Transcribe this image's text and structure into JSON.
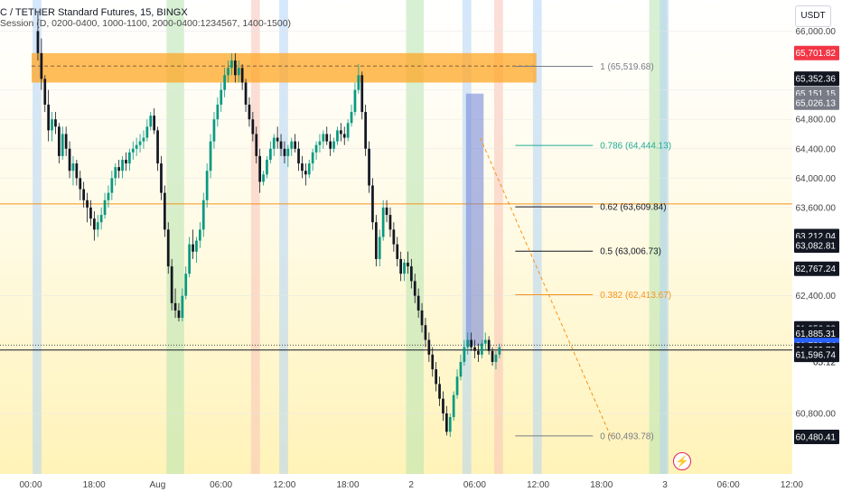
{
  "header": {
    "title": "C / TETHER Standard Futures, 15, BINGX",
    "session": "Session (D, 0200-0400, 1000-1100, 2000-0400:1234567, 1400-1500)"
  },
  "currency_button": "USDT",
  "countdown": "05:12",
  "chart_data": {
    "type": "candlestick",
    "title": "C / TETHER Standard Futures, 15, BINGX",
    "ylim": [
      60100,
      66300
    ],
    "y_ticks": [
      {
        "value": 66000,
        "label": "66,000.00"
      },
      {
        "value": 65200,
        "label": "65,200.00"
      },
      {
        "value": 64800,
        "label": "64,800.00"
      },
      {
        "value": 64400,
        "label": "64,400.00"
      },
      {
        "value": 64000,
        "label": "64,000.00"
      },
      {
        "value": 63600,
        "label": "63,600.00"
      },
      {
        "value": 62400,
        "label": "62,400.00"
      },
      {
        "value": 60800,
        "label": "60,800.00"
      }
    ],
    "x_ticks": [
      {
        "idx": 0,
        "label": "00:00"
      },
      {
        "idx": 18,
        "label": "18:00"
      },
      {
        "idx": 36,
        "label": "Aug"
      },
      {
        "idx": 54,
        "label": "06:00"
      },
      {
        "idx": 72,
        "label": "12:00"
      },
      {
        "idx": 90,
        "label": "18:00"
      },
      {
        "idx": 108,
        "label": "2"
      },
      {
        "idx": 126,
        "label": "06:00"
      },
      {
        "idx": 144,
        "label": "12:00"
      },
      {
        "idx": 162,
        "label": "18:00"
      },
      {
        "idx": 180,
        "label": "3"
      },
      {
        "idx": 198,
        "label": "06:00"
      },
      {
        "idx": 216,
        "label": "12:00"
      }
    ],
    "price_tags": [
      {
        "value": 65701.82,
        "label": "65,701.82",
        "bg": "#f23645",
        "fg": "#ffffff"
      },
      {
        "value": 65352.36,
        "label": "65,352.36",
        "bg": "#131722",
        "fg": "#ffffff"
      },
      {
        "value": 65151.15,
        "label": "65,151.15",
        "bg": "#787b86",
        "fg": "#ffffff"
      },
      {
        "value": 65026.13,
        "label": "65,026.13",
        "bg": "#787b86",
        "fg": "#ffffff"
      },
      {
        "value": 63212.04,
        "label": "63,212.04",
        "bg": "#131722",
        "fg": "#ffffff"
      },
      {
        "value": 63082.81,
        "label": "63,082.81",
        "bg": "#131722",
        "fg": "#ffffff"
      },
      {
        "value": 62767.24,
        "label": "62,767.24",
        "bg": "#131722",
        "fg": "#ffffff"
      },
      {
        "value": 61956.38,
        "label": "61,956.38",
        "bg": "#131722",
        "fg": "#ffffff"
      },
      {
        "value": 61885.31,
        "label": "61,885.31",
        "bg": "#131722",
        "fg": "#ffffff"
      },
      {
        "value": 61729.64,
        "label": "61,729.64",
        "bg": "#2962ff",
        "fg": "#ffffff"
      },
      {
        "value": 61662.72,
        "label": "61,662.72",
        "bg": "#131722",
        "fg": "#ffffff"
      },
      {
        "value": 61596.74,
        "label": "61,596.74",
        "bg": "#131722",
        "fg": "#ffffff"
      },
      {
        "value": 60480.41,
        "label": "60,480.41",
        "bg": "#131722",
        "fg": "#ffffff"
      }
    ],
    "fib_levels": [
      {
        "ratio": "1",
        "value": 65519.68,
        "label": "1 (65,519.68)",
        "color": "#787b86"
      },
      {
        "ratio": "0.786",
        "value": 64444.13,
        "label": "0.786 (64,444.13)",
        "color": "#22ab94"
      },
      {
        "ratio": "0.62",
        "value": 63609.84,
        "label": "0.62 (63,609.84)",
        "color": "#131722"
      },
      {
        "ratio": "0.5",
        "value": 63006.73,
        "label": "0.5 (63,006.73)",
        "color": "#131722"
      },
      {
        "ratio": "0.382",
        "value": 62413.67,
        "label": "0.382 (62,413.67)",
        "color": "#f7931a"
      },
      {
        "ratio": "0",
        "value": 60493.78,
        "label": "0 (60,493.78)",
        "color": "#787b86"
      }
    ],
    "horizontal_lines": [
      {
        "value": 63650,
        "color": "#f7931a"
      },
      {
        "value": 61662.72,
        "color": "#131722"
      }
    ],
    "zone": {
      "from_idx": 0,
      "to_idx": 142,
      "high": 65700,
      "low": 65300,
      "color": "#ffa726"
    },
    "highlight": {
      "from_idx": 122,
      "to_idx": 127,
      "high": 65150,
      "low": 61720,
      "color": "#6b7fd7"
    },
    "trendline": {
      "from_idx": 126,
      "from_value": 64550,
      "to_idx": 163,
      "to_value": 60493.78
    },
    "session_bands": [
      {
        "idx": -1,
        "width": 2.5,
        "color": "#b3d4f5"
      },
      {
        "idx": 37,
        "width": 5,
        "color": "#b7e3b0"
      },
      {
        "idx": 61,
        "width": 2.5,
        "color": "#f7c2b8"
      },
      {
        "idx": 69,
        "width": 2.5,
        "color": "#b3d4f5"
      },
      {
        "idx": 105,
        "width": 5,
        "color": "#b7e3b0"
      },
      {
        "idx": 121,
        "width": 2.5,
        "color": "#b3d4f5"
      },
      {
        "idx": 130,
        "width": 2.5,
        "color": "#f7c2b8"
      },
      {
        "idx": 141,
        "width": 2.5,
        "color": "#b3d4f5"
      },
      {
        "idx": 174,
        "width": 5,
        "color": "#b7e3b0"
      },
      {
        "idx": 177,
        "width": 2.5,
        "color": "#b3d4f5"
      }
    ],
    "candles": [
      [
        66000,
        66250,
        65600,
        65700
      ],
      [
        65700,
        65900,
        65200,
        65350
      ],
      [
        65350,
        65400,
        64900,
        65000
      ],
      [
        65000,
        65200,
        64500,
        64650
      ],
      [
        64650,
        64900,
        64500,
        64800
      ],
      [
        64800,
        64900,
        64600,
        64700
      ],
      [
        64700,
        64750,
        64200,
        64300
      ],
      [
        64300,
        64700,
        64250,
        64600
      ],
      [
        64600,
        64700,
        64300,
        64400
      ],
      [
        64400,
        64500,
        64000,
        64100
      ],
      [
        64100,
        64300,
        63900,
        64200
      ],
      [
        64200,
        64250,
        63900,
        64000
      ],
      [
        64000,
        64100,
        63700,
        63850
      ],
      [
        63850,
        63950,
        63600,
        63700
      ],
      [
        63700,
        63800,
        63400,
        63600
      ],
      [
        63600,
        63700,
        63350,
        63450
      ],
      [
        63450,
        63550,
        63150,
        63300
      ],
      [
        63300,
        63500,
        63200,
        63400
      ],
      [
        63400,
        63600,
        63300,
        63500
      ],
      [
        63500,
        63800,
        63450,
        63700
      ],
      [
        63700,
        63900,
        63600,
        63800
      ],
      [
        63800,
        64100,
        63700,
        64000
      ],
      [
        64000,
        64200,
        63900,
        64150
      ],
      [
        64150,
        64250,
        64000,
        64100
      ],
      [
        64100,
        64300,
        64000,
        64250
      ],
      [
        64250,
        64350,
        64100,
        64200
      ],
      [
        64200,
        64400,
        64100,
        64350
      ],
      [
        64350,
        64500,
        64250,
        64400
      ],
      [
        64400,
        64550,
        64300,
        64450
      ],
      [
        64450,
        64600,
        64350,
        64500
      ],
      [
        64500,
        64650,
        64400,
        64550
      ],
      [
        64550,
        64800,
        64500,
        64700
      ],
      [
        64700,
        64900,
        64650,
        64850
      ],
      [
        64850,
        64950,
        64600,
        64650
      ],
      [
        64650,
        64700,
        64100,
        64200
      ],
      [
        64200,
        64300,
        63700,
        63800
      ],
      [
        63800,
        63900,
        63200,
        63300
      ],
      [
        63300,
        63400,
        62700,
        62800
      ],
      [
        62800,
        62900,
        62200,
        62300
      ],
      [
        62300,
        62500,
        62100,
        62200
      ],
      [
        62200,
        62300,
        62050,
        62100
      ],
      [
        62100,
        62500,
        62050,
        62400
      ],
      [
        62400,
        62800,
        62350,
        62700
      ],
      [
        62700,
        63200,
        62650,
        63100
      ],
      [
        63100,
        63300,
        62900,
        63000
      ],
      [
        63000,
        63200,
        62850,
        63150
      ],
      [
        63150,
        63400,
        63050,
        63300
      ],
      [
        63300,
        63800,
        63200,
        63700
      ],
      [
        63700,
        64200,
        63600,
        64100
      ],
      [
        64100,
        64600,
        64000,
        64500
      ],
      [
        64500,
        64900,
        64400,
        64800
      ],
      [
        64800,
        65100,
        64700,
        65000
      ],
      [
        65000,
        65300,
        64900,
        65200
      ],
      [
        65200,
        65500,
        65100,
        65400
      ],
      [
        65400,
        65600,
        65300,
        65500
      ],
      [
        65500,
        65700,
        65400,
        65600
      ],
      [
        65600,
        65700,
        65300,
        65400
      ],
      [
        65400,
        65600,
        65300,
        65500
      ],
      [
        65500,
        65550,
        65200,
        65300
      ],
      [
        65300,
        65350,
        64900,
        65000
      ],
      [
        65000,
        65100,
        64700,
        64800
      ],
      [
        64800,
        64900,
        64500,
        64600
      ],
      [
        64600,
        64700,
        64200,
        64300
      ],
      [
        64300,
        64400,
        63800,
        63950
      ],
      [
        63950,
        64100,
        63900,
        64050
      ],
      [
        64050,
        64300,
        64000,
        64250
      ],
      [
        64250,
        64500,
        64200,
        64400
      ],
      [
        64400,
        64600,
        64300,
        64550
      ],
      [
        64550,
        64700,
        64400,
        64500
      ],
      [
        64500,
        64600,
        64300,
        64400
      ],
      [
        64400,
        64500,
        64200,
        64300
      ],
      [
        64300,
        64450,
        64150,
        64400
      ],
      [
        64400,
        64550,
        64300,
        64500
      ],
      [
        64500,
        64600,
        64350,
        64400
      ],
      [
        64400,
        64500,
        64100,
        64200
      ],
      [
        64200,
        64300,
        64000,
        64100
      ],
      [
        64100,
        64200,
        63900,
        64050
      ],
      [
        64050,
        64250,
        64000,
        64200
      ],
      [
        64200,
        64400,
        64100,
        64350
      ],
      [
        64350,
        64500,
        64250,
        64450
      ],
      [
        64450,
        64600,
        64350,
        64500
      ],
      [
        64500,
        64650,
        64400,
        64600
      ],
      [
        64600,
        64700,
        64450,
        64500
      ],
      [
        64500,
        64600,
        64300,
        64400
      ],
      [
        64400,
        64550,
        64350,
        64500
      ],
      [
        64500,
        64700,
        64450,
        64650
      ],
      [
        64650,
        64750,
        64500,
        64600
      ],
      [
        64600,
        64700,
        64450,
        64550
      ],
      [
        64550,
        64800,
        64500,
        64750
      ],
      [
        64750,
        65000,
        64700,
        64900
      ],
      [
        64900,
        65300,
        64850,
        65200
      ],
      [
        65200,
        65550,
        65150,
        65400
      ],
      [
        65400,
        65450,
        64800,
        64900
      ],
      [
        64900,
        65000,
        64300,
        64400
      ],
      [
        64400,
        64500,
        63800,
        63900
      ],
      [
        63900,
        64000,
        63300,
        63400
      ],
      [
        63400,
        63500,
        62800,
        62900
      ],
      [
        62900,
        63300,
        62800,
        63200
      ],
      [
        63200,
        63700,
        63150,
        63600
      ],
      [
        63600,
        63700,
        63400,
        63500
      ],
      [
        63500,
        63600,
        63200,
        63300
      ],
      [
        63300,
        63400,
        63000,
        63100
      ],
      [
        63100,
        63200,
        62800,
        62900
      ],
      [
        62900,
        63000,
        62600,
        62700
      ],
      [
        62700,
        62900,
        62600,
        62850
      ],
      [
        62850,
        63000,
        62700,
        62800
      ],
      [
        62800,
        62900,
        62500,
        62600
      ],
      [
        62600,
        62700,
        62300,
        62400
      ],
      [
        62400,
        62500,
        62100,
        62200
      ],
      [
        62200,
        62300,
        61900,
        62000
      ],
      [
        62000,
        62100,
        61700,
        61800
      ],
      [
        61800,
        61900,
        61500,
        61600
      ],
      [
        61600,
        61700,
        61300,
        61400
      ],
      [
        61400,
        61500,
        61100,
        61200
      ],
      [
        61200,
        61300,
        60900,
        61000
      ],
      [
        61000,
        61100,
        60700,
        60800
      ],
      [
        60800,
        60900,
        60500,
        60550
      ],
      [
        60550,
        60800,
        60480,
        60750
      ],
      [
        60750,
        61100,
        60700,
        61050
      ],
      [
        61050,
        61400,
        61000,
        61300
      ],
      [
        61300,
        61600,
        61250,
        61500
      ],
      [
        61500,
        61800,
        61450,
        61700
      ],
      [
        61700,
        61900,
        61600,
        61800
      ],
      [
        61800,
        61900,
        61650,
        61700
      ],
      [
        61700,
        61800,
        61550,
        61650
      ],
      [
        61650,
        61750,
        61500,
        61600
      ],
      [
        61600,
        61800,
        61550,
        61750
      ],
      [
        61750,
        61900,
        61650,
        61800
      ],
      [
        61800,
        61850,
        61600,
        61650
      ],
      [
        61650,
        61700,
        61450,
        61500
      ],
      [
        61500,
        61650,
        61400,
        61600
      ],
      [
        61600,
        61750,
        61550,
        61700
      ]
    ]
  }
}
